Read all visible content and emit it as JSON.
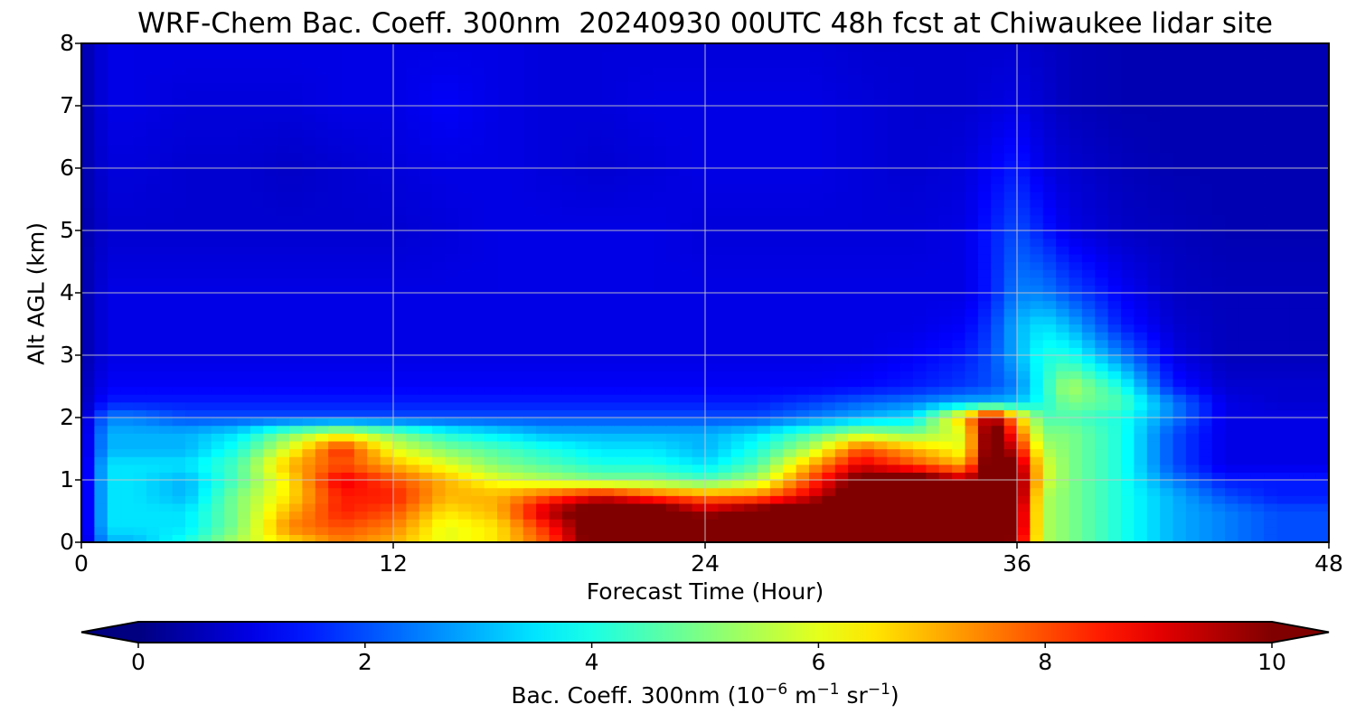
{
  "chart_data": {
    "type": "heatmap",
    "title": "WRF-Chem Bac. Coeff. 300nm  20240930 00UTC 48h fcst at Chiwaukee lidar site",
    "xlabel": "Forecast Time (Hour)",
    "ylabel": "Alt AGL (km)",
    "xlim": [
      0,
      48
    ],
    "ylim": [
      0,
      8
    ],
    "x_ticks": [
      "0",
      "12",
      "24",
      "36",
      "48"
    ],
    "y_ticks": [
      "0",
      "1",
      "2",
      "3",
      "4",
      "5",
      "6",
      "7",
      "8"
    ],
    "grid": true,
    "colormap": "jet",
    "colorbar": {
      "label_main": "Bac. Coeff. 300nm  (10",
      "label_exp1": "−6",
      "label_mid": " m",
      "label_exp2": "−1",
      "label_mid2": " sr",
      "label_exp3": "−1",
      "label_end": ")",
      "range": [
        0,
        10
      ],
      "ticks": [
        "0",
        "2",
        "4",
        "6",
        "8",
        "10"
      ],
      "extend": "both"
    },
    "x": [
      0,
      1,
      2,
      4,
      6,
      8,
      10,
      12,
      14,
      16,
      18,
      20,
      22,
      24,
      26,
      28,
      30,
      32,
      34,
      35,
      36,
      37,
      38,
      40,
      42,
      44,
      46,
      48
    ],
    "y": [
      0,
      0.25,
      0.5,
      0.75,
      1.0,
      1.25,
      1.5,
      1.75,
      2.0,
      2.25,
      2.5,
      3.0,
      3.5,
      4.0,
      5.0,
      6.0,
      7.0,
      8.0
    ],
    "values": [
      [
        0.5,
        3.0,
        3.0,
        4.0,
        5.5,
        6.5,
        7.5,
        7.0,
        6.0,
        6.5,
        8.0,
        11.0,
        11.0,
        10.0,
        11.0,
        11.0,
        11.0,
        11.0,
        11.0,
        11.0,
        9.5,
        5.5,
        5.0,
        4.0,
        3.0,
        2.5,
        2.0,
        2.0
      ],
      [
        0.5,
        3.5,
        3.5,
        3.5,
        5.0,
        7.5,
        8.0,
        7.5,
        6.0,
        6.5,
        8.5,
        11.0,
        11.0,
        10.5,
        11.0,
        11.0,
        11.0,
        11.0,
        11.0,
        11.0,
        10.0,
        5.5,
        5.0,
        4.0,
        3.0,
        2.5,
        2.0,
        2.0
      ],
      [
        0.5,
        3.5,
        3.5,
        3.5,
        5.0,
        7.0,
        8.5,
        8.0,
        6.5,
        7.0,
        9.5,
        11.0,
        11.0,
        9.5,
        10.5,
        11.0,
        11.0,
        11.0,
        11.0,
        11.0,
        10.0,
        5.5,
        5.0,
        4.0,
        3.0,
        2.5,
        2.0,
        2.0
      ],
      [
        0.5,
        3.5,
        3.5,
        3.0,
        5.0,
        6.5,
        8.5,
        8.5,
        7.0,
        7.0,
        8.0,
        9.0,
        8.0,
        7.5,
        7.5,
        9.0,
        11.0,
        11.0,
        11.0,
        11.0,
        10.5,
        5.5,
        5.0,
        4.0,
        3.0,
        2.0,
        1.5,
        1.5
      ],
      [
        0.5,
        3.5,
        3.5,
        3.0,
        4.5,
        6.5,
        9.0,
        8.0,
        7.0,
        6.0,
        5.5,
        5.0,
        5.0,
        4.5,
        5.5,
        8.0,
        10.5,
        11.0,
        9.5,
        11.0,
        10.5,
        6.0,
        5.0,
        4.0,
        2.5,
        1.5,
        1.5,
        1.5
      ],
      [
        0.5,
        3.5,
        3.5,
        3.5,
        4.5,
        7.0,
        8.0,
        7.0,
        6.0,
        5.0,
        4.5,
        4.0,
        4.0,
        3.5,
        4.5,
        7.0,
        9.0,
        8.0,
        7.0,
        11.0,
        10.0,
        6.0,
        5.0,
        4.0,
        2.0,
        1.0,
        1.0,
        1.0
      ],
      [
        0.5,
        3.0,
        3.0,
        3.0,
        4.0,
        6.0,
        8.5,
        6.0,
        5.0,
        4.5,
        4.0,
        3.5,
        3.5,
        3.0,
        4.0,
        5.5,
        8.0,
        7.0,
        6.0,
        11.0,
        9.0,
        5.5,
        5.0,
        4.0,
        2.0,
        1.0,
        1.0,
        1.0
      ],
      [
        0.5,
        3.0,
        3.0,
        3.0,
        3.5,
        5.0,
        6.0,
        5.0,
        4.0,
        3.5,
        3.0,
        3.0,
        3.0,
        3.0,
        3.5,
        4.5,
        5.5,
        5.0,
        6.0,
        11.0,
        8.0,
        5.0,
        5.0,
        4.0,
        2.0,
        1.0,
        1.0,
        1.0
      ],
      [
        0.5,
        2.5,
        2.5,
        2.0,
        2.0,
        2.0,
        2.0,
        2.0,
        2.0,
        2.0,
        2.0,
        2.0,
        2.0,
        2.0,
        2.0,
        2.5,
        3.0,
        3.5,
        7.0,
        10.0,
        7.0,
        4.5,
        4.5,
        4.0,
        2.5,
        1.0,
        1.0,
        1.0
      ],
      [
        0.5,
        1.5,
        1.5,
        1.5,
        1.5,
        1.5,
        1.5,
        1.5,
        1.5,
        1.5,
        1.5,
        1.5,
        1.5,
        1.5,
        1.5,
        1.8,
        2.2,
        2.5,
        3.0,
        3.0,
        3.2,
        4.0,
        5.0,
        4.5,
        2.5,
        1.0,
        0.8,
        0.8
      ],
      [
        0.5,
        1.2,
        1.2,
        1.2,
        1.2,
        1.2,
        1.2,
        1.2,
        1.2,
        1.2,
        1.2,
        1.2,
        1.2,
        1.2,
        1.2,
        1.2,
        1.3,
        1.5,
        1.8,
        2.0,
        2.5,
        4.0,
        5.5,
        4.0,
        1.5,
        0.8,
        0.8,
        0.8
      ],
      [
        0.4,
        1.0,
        1.0,
        1.0,
        1.0,
        1.0,
        1.0,
        1.0,
        1.0,
        1.0,
        1.0,
        1.0,
        1.0,
        1.0,
        1.0,
        1.0,
        1.0,
        1.2,
        1.5,
        2.0,
        3.0,
        4.0,
        4.0,
        2.5,
        1.0,
        0.6,
        0.6,
        0.6
      ],
      [
        0.4,
        1.0,
        1.0,
        1.0,
        1.0,
        1.0,
        1.0,
        1.0,
        1.0,
        1.0,
        1.0,
        1.0,
        1.0,
        1.0,
        1.0,
        1.0,
        1.0,
        1.0,
        1.2,
        1.8,
        3.0,
        3.5,
        3.0,
        1.5,
        0.8,
        0.6,
        0.6,
        0.6
      ],
      [
        0.4,
        1.0,
        1.0,
        1.0,
        1.0,
        1.0,
        1.0,
        1.0,
        1.0,
        1.0,
        1.0,
        1.0,
        1.0,
        1.0,
        1.0,
        1.0,
        1.0,
        1.0,
        1.0,
        1.5,
        2.5,
        2.5,
        2.0,
        1.2,
        0.7,
        0.6,
        0.6,
        0.6
      ],
      [
        0.4,
        0.8,
        0.8,
        0.8,
        0.8,
        0.8,
        0.8,
        0.8,
        0.9,
        1.0,
        1.0,
        1.0,
        1.0,
        0.9,
        0.9,
        0.9,
        0.9,
        0.9,
        1.0,
        1.5,
        2.0,
        1.5,
        1.0,
        0.7,
        0.6,
        0.5,
        0.5,
        0.5
      ],
      [
        0.4,
        0.9,
        0.9,
        0.8,
        0.8,
        0.7,
        0.8,
        0.9,
        1.0,
        1.0,
        0.9,
        0.8,
        0.9,
        1.0,
        1.0,
        1.0,
        0.9,
        0.8,
        0.9,
        1.2,
        1.5,
        1.0,
        0.8,
        0.6,
        0.5,
        0.5,
        0.5,
        0.5
      ],
      [
        0.4,
        1.0,
        1.0,
        0.9,
        0.9,
        0.9,
        1.0,
        1.0,
        1.2,
        1.0,
        0.9,
        0.9,
        1.0,
        1.0,
        1.0,
        1.0,
        0.9,
        0.8,
        0.8,
        0.9,
        1.0,
        0.8,
        0.6,
        0.5,
        0.5,
        0.5,
        0.5,
        0.5
      ],
      [
        0.4,
        1.0,
        1.0,
        1.0,
        1.0,
        1.0,
        1.0,
        1.0,
        1.0,
        1.0,
        0.9,
        0.9,
        0.9,
        0.9,
        0.9,
        0.9,
        0.8,
        0.8,
        0.8,
        0.8,
        0.8,
        0.7,
        0.6,
        0.5,
        0.5,
        0.5,
        0.5,
        0.5
      ]
    ]
  }
}
